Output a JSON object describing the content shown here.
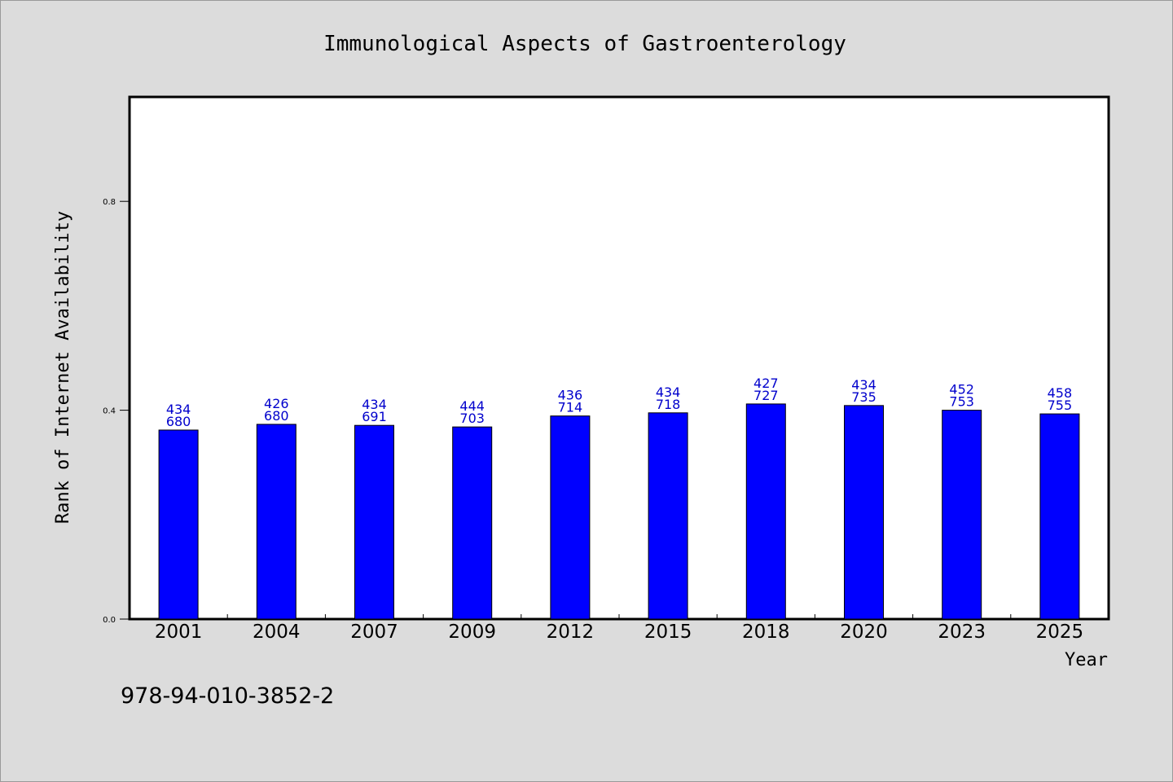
{
  "chart_data": {
    "type": "bar",
    "title": "Immunological Aspects of Gastroenterology",
    "xlabel": "Year",
    "ylabel": "Rank of Internet Availability",
    "categories": [
      "2001",
      "2004",
      "2007",
      "2009",
      "2012",
      "2015",
      "2018",
      "2020",
      "2023",
      "2025"
    ],
    "values": [
      0.362,
      0.373,
      0.371,
      0.368,
      0.389,
      0.395,
      0.412,
      0.409,
      0.4,
      0.393
    ],
    "label_top": [
      "434",
      "426",
      "434",
      "444",
      "436",
      "434",
      "427",
      "434",
      "452",
      "458"
    ],
    "label_bottom": [
      "680",
      "680",
      "691",
      "703",
      "714",
      "718",
      "727",
      "735",
      "753",
      "755"
    ],
    "ylim": [
      0,
      1.0
    ],
    "yticks": [
      "0.0",
      "0.4",
      "0.8"
    ],
    "grid": false,
    "bar_color": "#0000ff",
    "label_color": "#0000cc",
    "footnote": "978-94-010-3852-2"
  }
}
